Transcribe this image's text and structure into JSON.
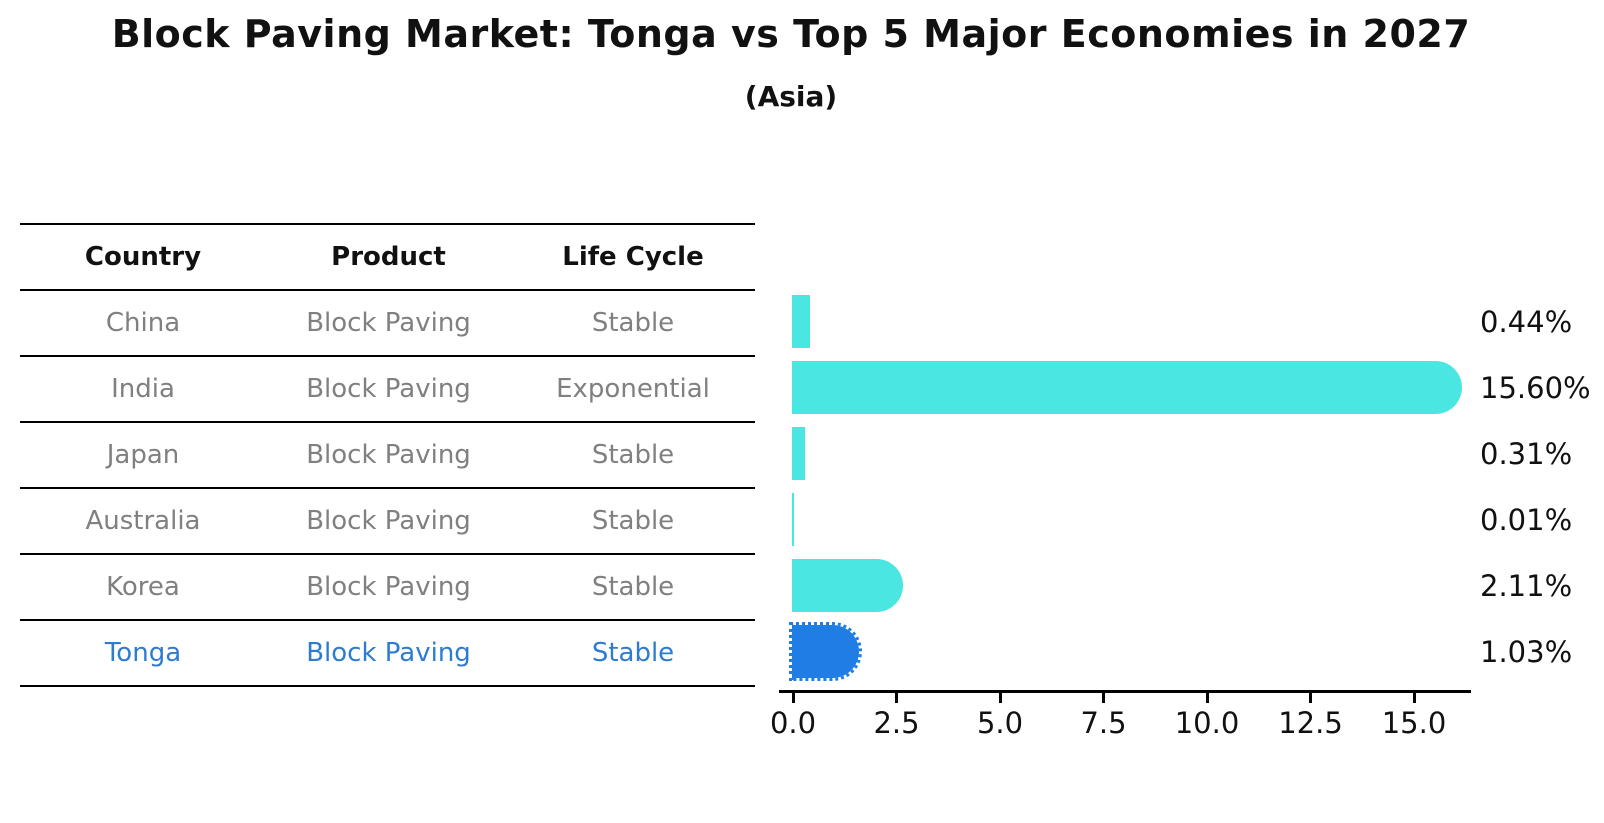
{
  "header": {
    "title": "Block Paving Market: Tonga vs Top 5 Major Economies in 2027",
    "subtitle": "(Asia)"
  },
  "table": {
    "headers": [
      "Country",
      "Product",
      "Life Cycle"
    ],
    "rows": [
      {
        "country": "China",
        "product": "Block Paving",
        "life_cycle": "Stable",
        "highlight": false
      },
      {
        "country": "India",
        "product": "Block Paving",
        "life_cycle": "Exponential",
        "highlight": false
      },
      {
        "country": "Japan",
        "product": "Block Paving",
        "life_cycle": "Stable",
        "highlight": false
      },
      {
        "country": "Australia",
        "product": "Block Paving",
        "life_cycle": "Stable",
        "highlight": false
      },
      {
        "country": "Korea",
        "product": "Block Paving",
        "life_cycle": "Stable",
        "highlight": false
      },
      {
        "country": "Tonga",
        "product": "Block Paving",
        "life_cycle": "Stable",
        "highlight": true
      }
    ]
  },
  "chart_data": {
    "type": "bar",
    "orientation": "horizontal",
    "title": "Block Paving Market: Tonga vs Top 5 Major Economies in 2027",
    "subtitle": "(Asia)",
    "categories": [
      "China",
      "India",
      "Japan",
      "Australia",
      "Korea",
      "Tonga"
    ],
    "values": [
      0.44,
      15.6,
      0.31,
      0.01,
      2.11,
      1.03
    ],
    "value_labels": [
      "0.44%",
      "15.60%",
      "0.31%",
      "0.01%",
      "2.11%",
      "1.03%"
    ],
    "x_ticks": [
      "0.0",
      "2.5",
      "5.0",
      "7.5",
      "10.0",
      "12.5",
      "15.0"
    ],
    "xlim": [
      0,
      16.4
    ],
    "grid": false,
    "legend": "none",
    "bar_color": "#4AE6E2",
    "highlight_bar_color": "#1F7DE4",
    "highlight_index": 5,
    "highlight_category": "Tonga",
    "highlight_edge_style": "dotted"
  },
  "colors": {
    "bar_cyan": "#4AE6E2",
    "bar_blue": "#1F7DE4",
    "highlight_text": "#2E7CD1",
    "row_text": "#808080",
    "heading_text": "#111111",
    "axis": "#000000"
  }
}
